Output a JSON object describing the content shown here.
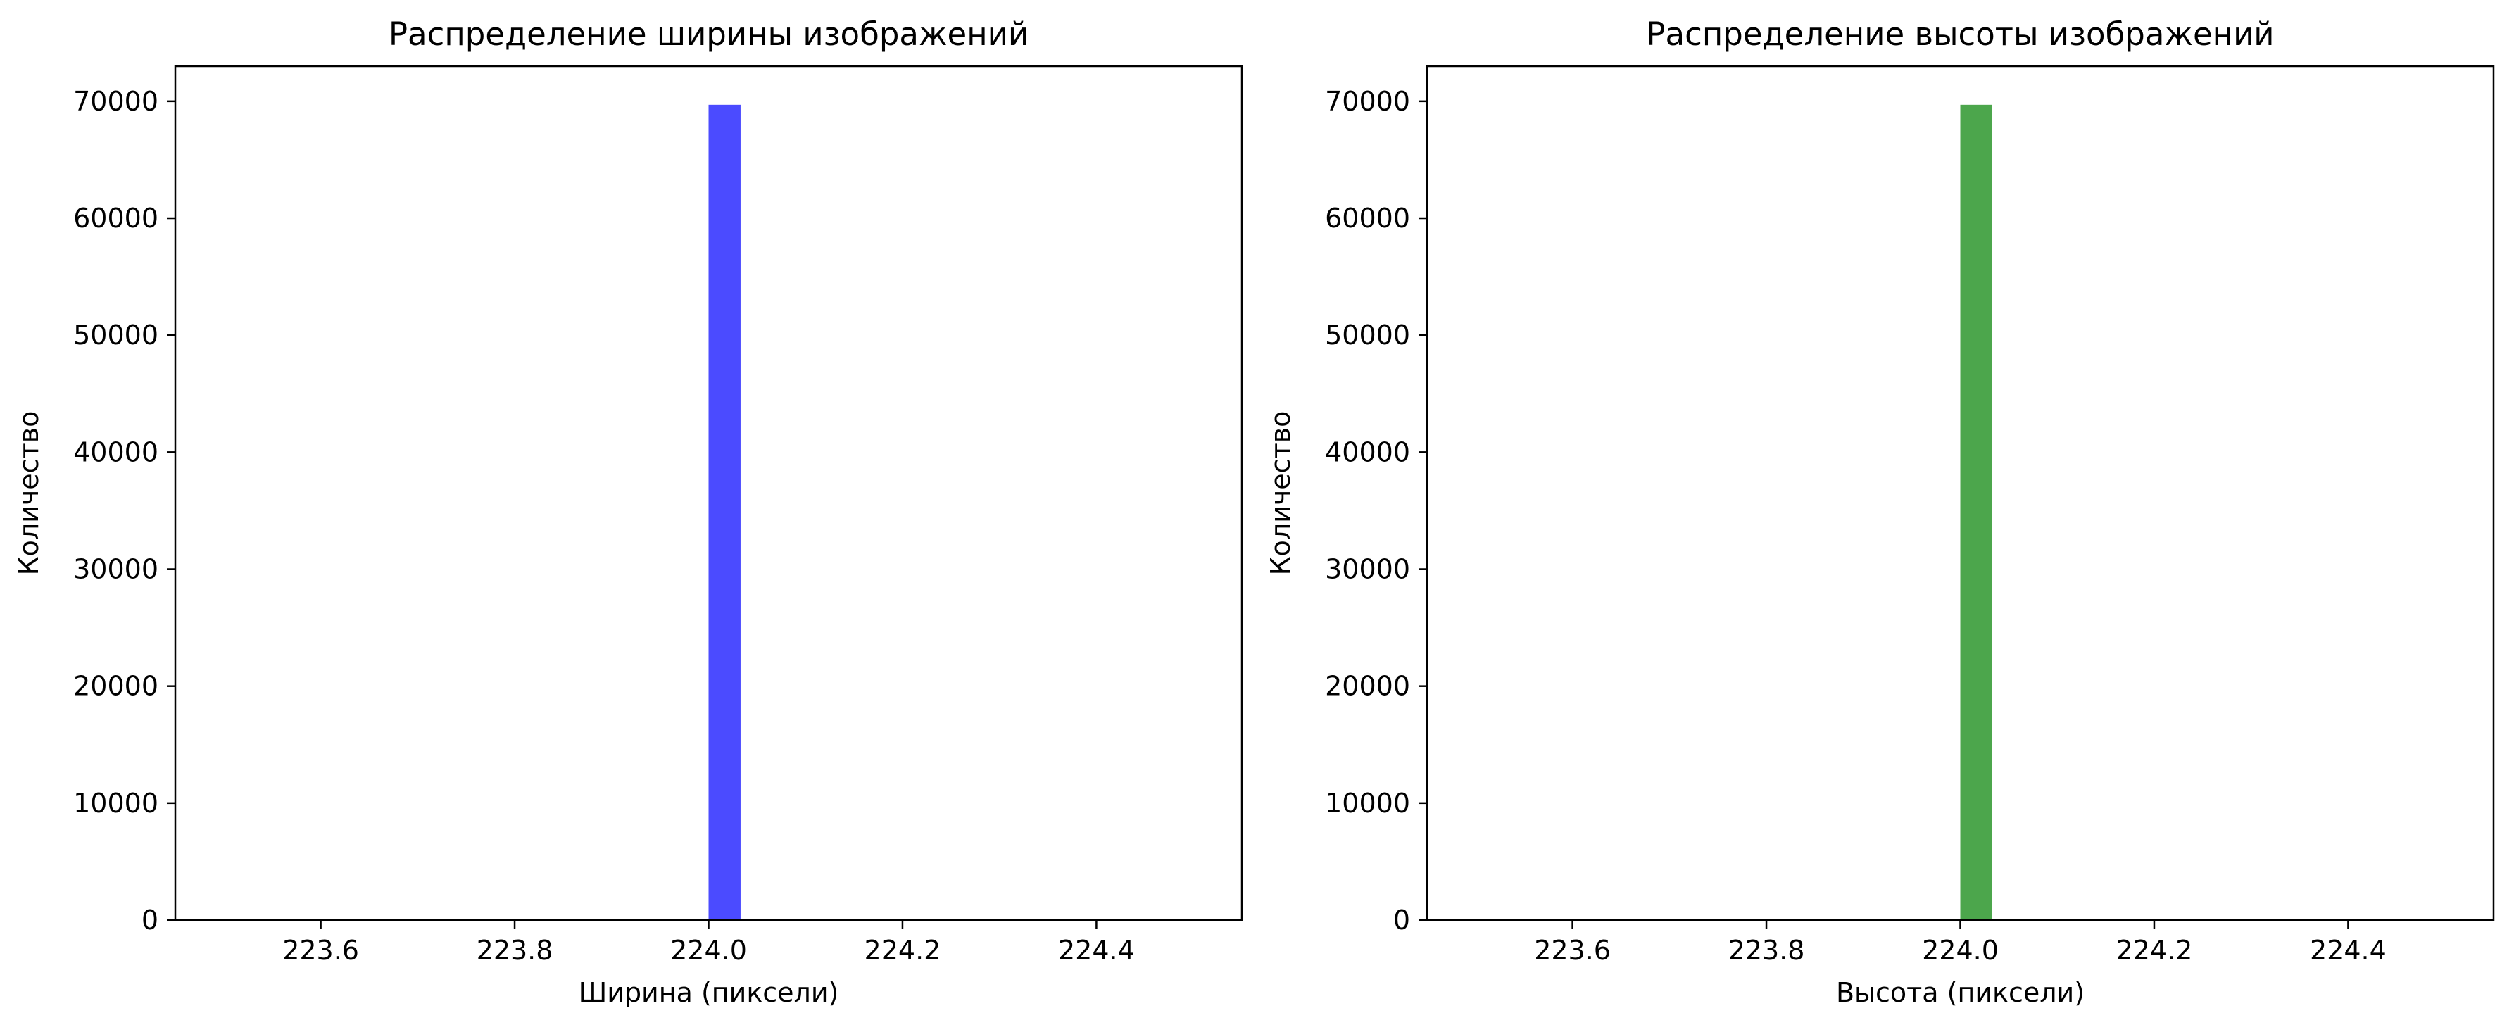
{
  "chart_data": [
    {
      "type": "bar",
      "title": "Распределение ширины изображений",
      "xlabel": "Ширина (пиксели)",
      "ylabel": "Количество",
      "xlim": [
        223.45,
        224.55
      ],
      "ylim": [
        0,
        73000
      ],
      "x_ticks": [
        "223.6",
        "223.8",
        "224.0",
        "224.2",
        "224.4"
      ],
      "y_ticks": [
        "0",
        "10000",
        "20000",
        "30000",
        "40000",
        "50000",
        "60000",
        "70000"
      ],
      "bins": [
        {
          "x_start": 224.0,
          "x_end": 224.033,
          "count": 69700
        }
      ],
      "color": "#4b4bff",
      "grid": false,
      "legend": "none"
    },
    {
      "type": "bar",
      "title": "Распределение высоты изображений",
      "xlabel": "Высота (пиксели)",
      "ylabel": "Количество",
      "xlim": [
        223.45,
        224.55
      ],
      "ylim": [
        0,
        73000
      ],
      "x_ticks": [
        "223.6",
        "223.8",
        "224.0",
        "224.2",
        "224.4"
      ],
      "y_ticks": [
        "0",
        "10000",
        "20000",
        "30000",
        "40000",
        "50000",
        "60000",
        "70000"
      ],
      "bins": [
        {
          "x_start": 224.0,
          "x_end": 224.033,
          "count": 69700
        }
      ],
      "color": "#4ca64c",
      "grid": false,
      "legend": "none"
    }
  ]
}
